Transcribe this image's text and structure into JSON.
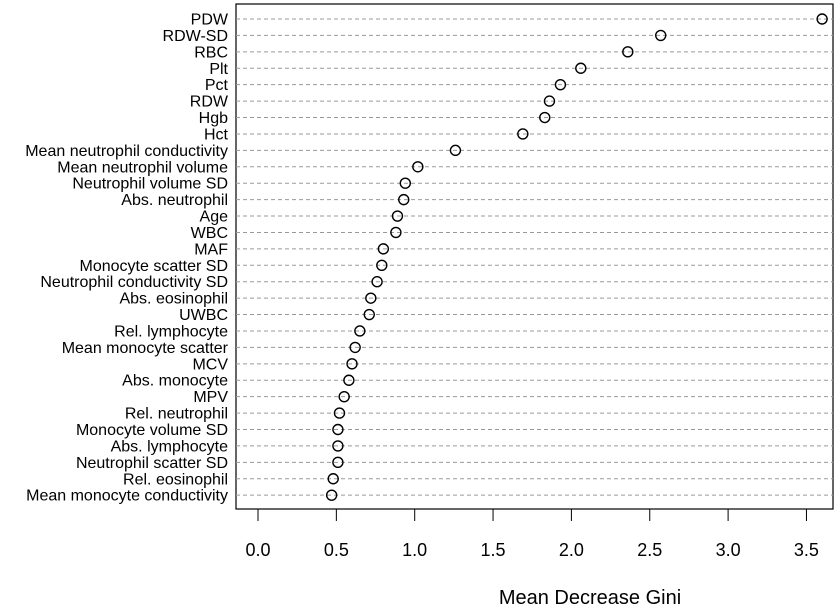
{
  "chart_data": {
    "type": "scatter",
    "xlabel": "Mean Decrease Gini",
    "xlim": [
      0,
      3.65
    ],
    "xticks": [
      "0.0",
      "0.5",
      "1.0",
      "1.5",
      "2.0",
      "2.5",
      "3.0",
      "3.5"
    ],
    "grid": "horizontal dashed",
    "point_style": "open-circle",
    "variables": [
      {
        "name": "PDW",
        "value": 3.6
      },
      {
        "name": "RDW-SD",
        "value": 2.57
      },
      {
        "name": "RBC",
        "value": 2.36
      },
      {
        "name": "Plt",
        "value": 2.06
      },
      {
        "name": "Pct",
        "value": 1.93
      },
      {
        "name": "RDW",
        "value": 1.86
      },
      {
        "name": "Hgb",
        "value": 1.83
      },
      {
        "name": "Hct",
        "value": 1.69
      },
      {
        "name": "Mean neutrophil conductivity",
        "value": 1.26
      },
      {
        "name": "Mean neutrophil volume",
        "value": 1.02
      },
      {
        "name": "Neutrophil volume SD",
        "value": 0.94
      },
      {
        "name": "Abs. neutrophil",
        "value": 0.93
      },
      {
        "name": "Age",
        "value": 0.89
      },
      {
        "name": "WBC",
        "value": 0.88
      },
      {
        "name": "MAF",
        "value": 0.8
      },
      {
        "name": "Monocyte scatter SD",
        "value": 0.79
      },
      {
        "name": "Neutrophil conductivity SD",
        "value": 0.76
      },
      {
        "name": "Abs. eosinophil",
        "value": 0.72
      },
      {
        "name": "UWBC",
        "value": 0.71
      },
      {
        "name": "Rel. lymphocyte",
        "value": 0.65
      },
      {
        "name": "Mean monocyte scatter",
        "value": 0.62
      },
      {
        "name": "MCV",
        "value": 0.6
      },
      {
        "name": "Abs. monocyte",
        "value": 0.58
      },
      {
        "name": "MPV",
        "value": 0.55
      },
      {
        "name": "Rel. neutrophil",
        "value": 0.52
      },
      {
        "name": "Monocyte volume SD",
        "value": 0.51
      },
      {
        "name": "Abs. lymphocyte",
        "value": 0.51
      },
      {
        "name": "Neutrophil scatter SD",
        "value": 0.51
      },
      {
        "name": "Rel. eosinophil",
        "value": 0.48
      },
      {
        "name": "Mean monocyte conductivity",
        "value": 0.47
      }
    ]
  }
}
